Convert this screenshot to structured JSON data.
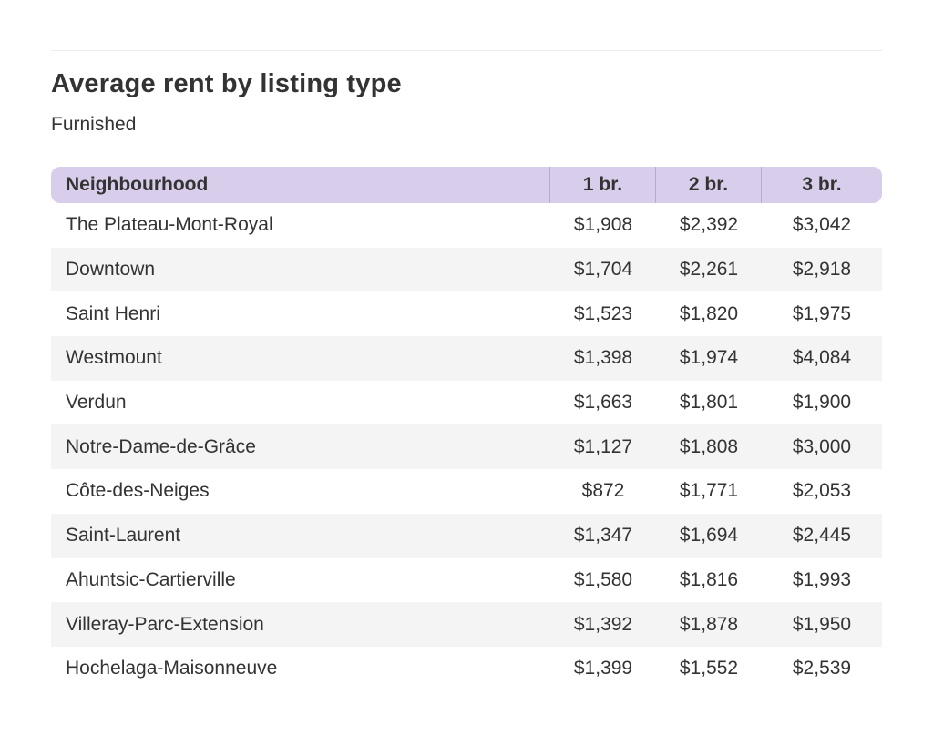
{
  "chart_data": {
    "type": "table",
    "title": "Average rent by listing type",
    "subtitle": "Furnished",
    "columns": [
      "Neighbourhood",
      "1 br.",
      "2 br.",
      "3 br."
    ],
    "rows": [
      [
        "The Plateau-Mont-Royal",
        "$1,908",
        "$2,392",
        "$3,042"
      ],
      [
        "Downtown",
        "$1,704",
        "$2,261",
        "$2,918"
      ],
      [
        "Saint Henri",
        "$1,523",
        "$1,820",
        "$1,975"
      ],
      [
        "Westmount",
        "$1,398",
        "$1,974",
        "$4,084"
      ],
      [
        "Verdun",
        "$1,663",
        "$1,801",
        "$1,900"
      ],
      [
        "Notre-Dame-de-Grâce",
        "$1,127",
        "$1,808",
        "$3,000"
      ],
      [
        "Côte-des-Neiges",
        "$872",
        "$1,771",
        "$2,053"
      ],
      [
        "Saint-Laurent",
        "$1,347",
        "$1,694",
        "$2,445"
      ],
      [
        "Ahuntsic-Cartierville",
        "$1,580",
        "$1,816",
        "$1,993"
      ],
      [
        "Villeray-Parc-Extension",
        "$1,392",
        "$1,878",
        "$1,950"
      ],
      [
        "Hochelaga-Maisonneuve",
        "$1,399",
        "$1,552",
        "$2,539"
      ]
    ]
  },
  "colors": {
    "header_bg": "#d8cdea",
    "stripe_bg": "#f4f4f4",
    "text": "#333333"
  }
}
